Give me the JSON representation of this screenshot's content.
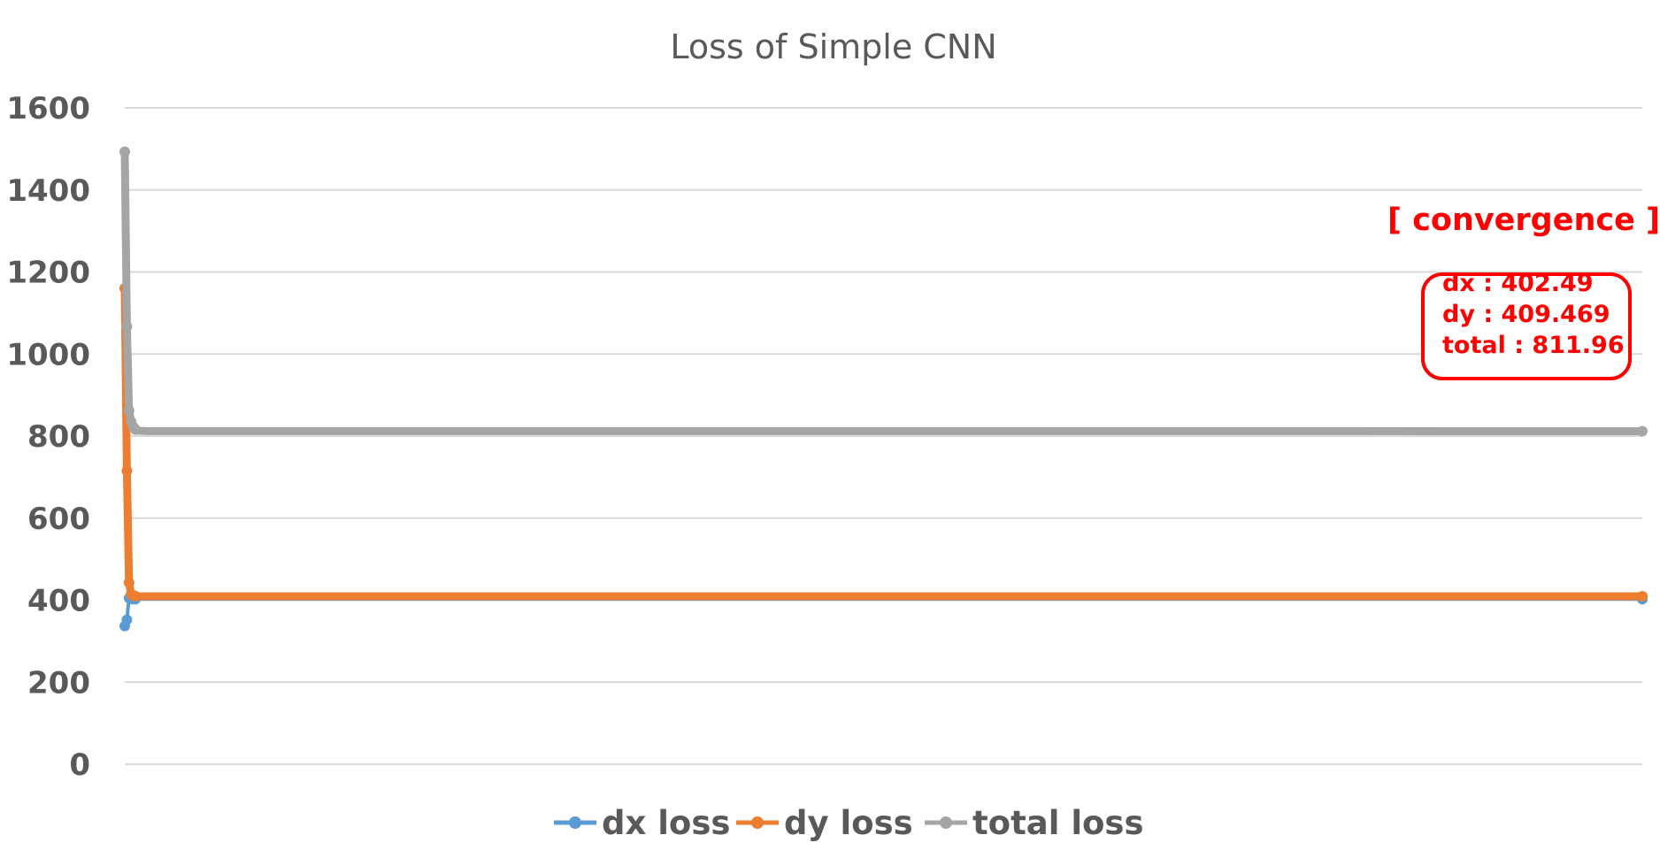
{
  "chart_data": {
    "type": "line",
    "title": "Loss of Simple CNN",
    "xlabel": "",
    "ylabel": "",
    "ylim": [
      0,
      1600
    ],
    "yticks": [
      0,
      200,
      400,
      600,
      800,
      1000,
      1200,
      1400,
      1600
    ],
    "grid": true,
    "legend_position": "bottom",
    "x": [
      1,
      2,
      3,
      4,
      5,
      6,
      10,
      20,
      50,
      100,
      200,
      500,
      1000,
      1500,
      2000
    ],
    "series": [
      {
        "name": "dx loss",
        "color": "#5B9BD5",
        "values": [
          337,
          352,
          405,
          403,
          402.5,
          402.5,
          402.5,
          402.5,
          402.5,
          402.5,
          402.5,
          402.5,
          402.5,
          402.5,
          402.49
        ]
      },
      {
        "name": "dy loss",
        "color": "#ED7D31",
        "values": [
          1160,
          715,
          443,
          415,
          411,
          410,
          409.5,
          409.5,
          409.5,
          409.5,
          409.5,
          409.5,
          409.5,
          409.5,
          409.469
        ]
      },
      {
        "name": "total loss",
        "color": "#A5A5A5",
        "values": [
          1493,
          1067,
          862,
          835,
          822,
          816,
          813,
          812,
          812,
          812,
          812,
          812,
          812,
          812,
          811.96
        ]
      }
    ],
    "annotation": {
      "title": "[ convergence ]",
      "color": "#FF0000",
      "lines": [
        "dx : 402.49",
        "dy : 409.469",
        "total : 811.96"
      ]
    }
  }
}
